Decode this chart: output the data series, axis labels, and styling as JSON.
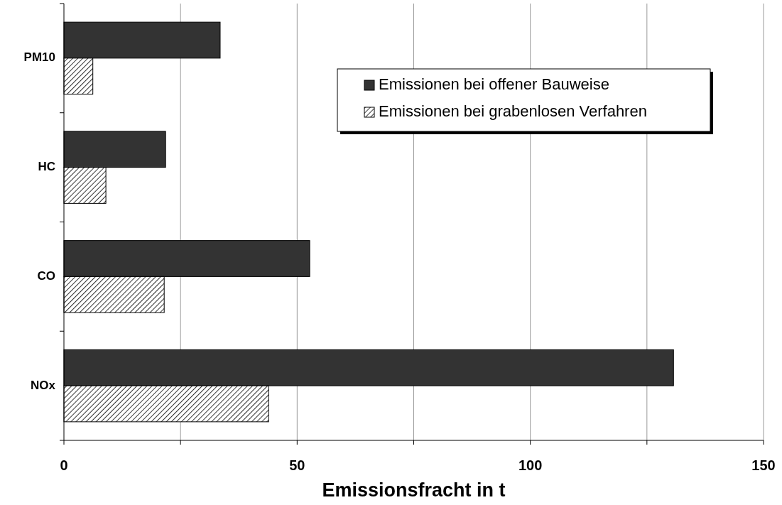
{
  "chart_data": {
    "type": "bar",
    "orientation": "horizontal",
    "xlabel": "Emissionsfracht in t",
    "categories": [
      "PM10",
      "HC",
      "CO",
      "NOx"
    ],
    "series": [
      {
        "name": "Emissionen bei offener Bauweise",
        "color": "#333333",
        "values": [
          33.5,
          21.8,
          52.7,
          130.7
        ]
      },
      {
        "name": "Emissionen bei grabenlosen Verfahren",
        "color": "#000000",
        "values": [
          6.2,
          9.0,
          21.5,
          43.9
        ]
      }
    ],
    "xlim": [
      0,
      150
    ],
    "xticks": [
      0,
      {
        "value": 25,
        "label": null
      },
      50,
      {
        "value": 75,
        "label": null
      },
      100,
      {
        "value": 125,
        "label": null
      },
      150
    ],
    "grid": "x",
    "legend": "top right"
  }
}
